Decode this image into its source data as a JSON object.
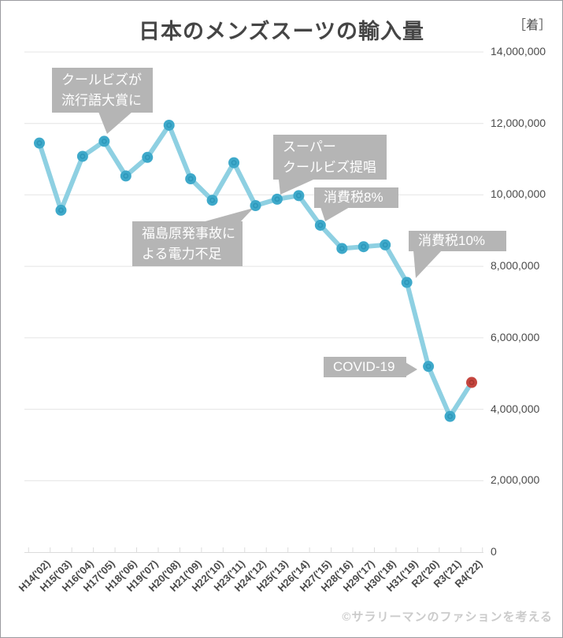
{
  "chart_data": {
    "type": "line",
    "title": "日本のメンズスーツの輸入量",
    "unit_label": "［着］",
    "categories": [
      "H14('02)",
      "H15('03)",
      "H16('04)",
      "H17('05)",
      "H18('06)",
      "H19('07)",
      "H20('08)",
      "H21('09)",
      "H22('10)",
      "H23('11)",
      "H24('12)",
      "H25('13)",
      "H26('14)",
      "H27('15)",
      "H28('16)",
      "H29('17)",
      "H30('18)",
      "H31('19)",
      "R2('20)",
      "R3('21)",
      "R4('22)"
    ],
    "values": [
      11450000,
      9570000,
      11080000,
      11500000,
      10530000,
      11050000,
      11950000,
      10450000,
      9850000,
      10900000,
      9700000,
      9880000,
      9980000,
      9150000,
      8500000,
      8550000,
      8600000,
      7550000,
      5200000,
      3800000,
      4750000
    ],
    "ylim": [
      0,
      14000000
    ],
    "ytick_step": 2000000,
    "ytick_labels": [
      "14,000,000",
      "12,000,000",
      "10,000,000",
      "8,000,000",
      "6,000,000",
      "4,000,000",
      "2,000,000",
      "0"
    ],
    "grid": true,
    "legend": "none",
    "annotations": [
      {
        "lines": [
          "クールビズが",
          "流行語大賞に"
        ],
        "target_category": "H17('05)"
      },
      {
        "lines": [
          "スーパー",
          "クールビズ提唱"
        ],
        "target_category": "H25('13)"
      },
      {
        "lines": [
          "消費税8%"
        ],
        "target_category": "H27('15)"
      },
      {
        "lines": [
          "福島原発事故に",
          "よる電力不足"
        ],
        "target_category": "H24('12)"
      },
      {
        "lines": [
          "消費税10%"
        ],
        "target_category": "H31('19)"
      },
      {
        "lines": [
          "COVID-19"
        ],
        "target_category": "R2('20)"
      }
    ],
    "colors": {
      "line": "#8ed0e2",
      "marker": "#3ea9ca",
      "marker_inner": "#2d97ba",
      "marker_last": "#c5463f",
      "marker_last_inner": "#a8362f",
      "grid": "#e4e4e4",
      "axis": "#dcdcdc",
      "annotation_bg": "#b5b5b5",
      "text": "#4b4b4b"
    }
  },
  "footer": {
    "credit": "©サラリーマンのファションを考える"
  }
}
